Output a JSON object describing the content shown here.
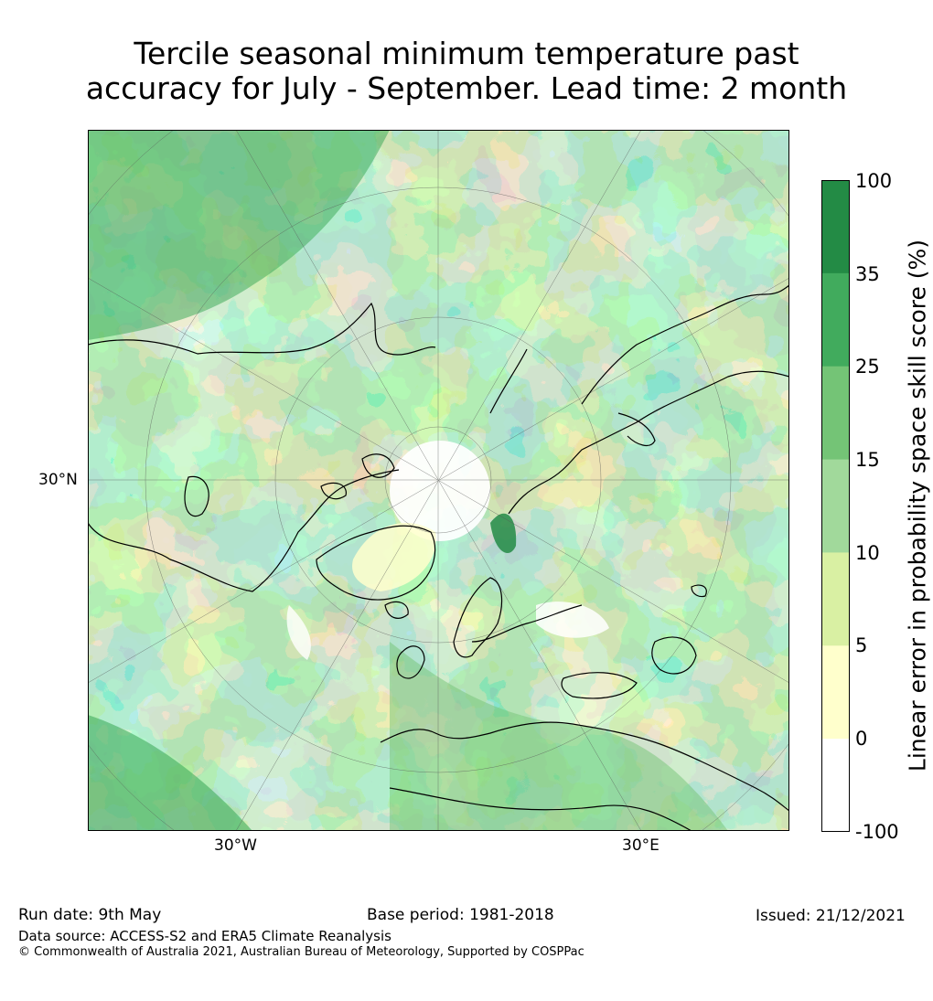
{
  "title": {
    "line1": "Tercile seasonal minimum temperature past",
    "line2": "accuracy for July - September. Lead time: 2 month"
  },
  "map": {
    "projection": "north polar stereographic",
    "graticule_labels": {
      "lat_30n": "30°N",
      "lon_30w": "30°W",
      "lon_30e": "30°E"
    }
  },
  "colorbar": {
    "label": "Linear error in probability space skill score (%)",
    "ticks": [
      "100",
      "35",
      "25",
      "15",
      "10",
      "5",
      "0",
      "-100"
    ],
    "bins": [
      {
        "range": "35–100",
        "color": "#238b45"
      },
      {
        "range": "25–35",
        "color": "#41ab5d"
      },
      {
        "range": "15–25",
        "color": "#74c476"
      },
      {
        "range": "10–15",
        "color": "#a1d99b"
      },
      {
        "range": "5–10",
        "color": "#d9f0a3"
      },
      {
        "range": "0–5",
        "color": "#ffffcc"
      },
      {
        "range": "-100–0",
        "color": "#ffffff"
      }
    ]
  },
  "footer": {
    "run_date": "Run date: 9th May",
    "base_period": "Base period: 1981-2018",
    "issued": "Issued: 21/12/2021",
    "data_source": "Data source: ACCESS-S2 and ERA5 Climate Reanalysis",
    "copyright": "© Commonwealth of Australia 2021, Australian Bureau of Meteorology, Supported by COSPPac"
  }
}
